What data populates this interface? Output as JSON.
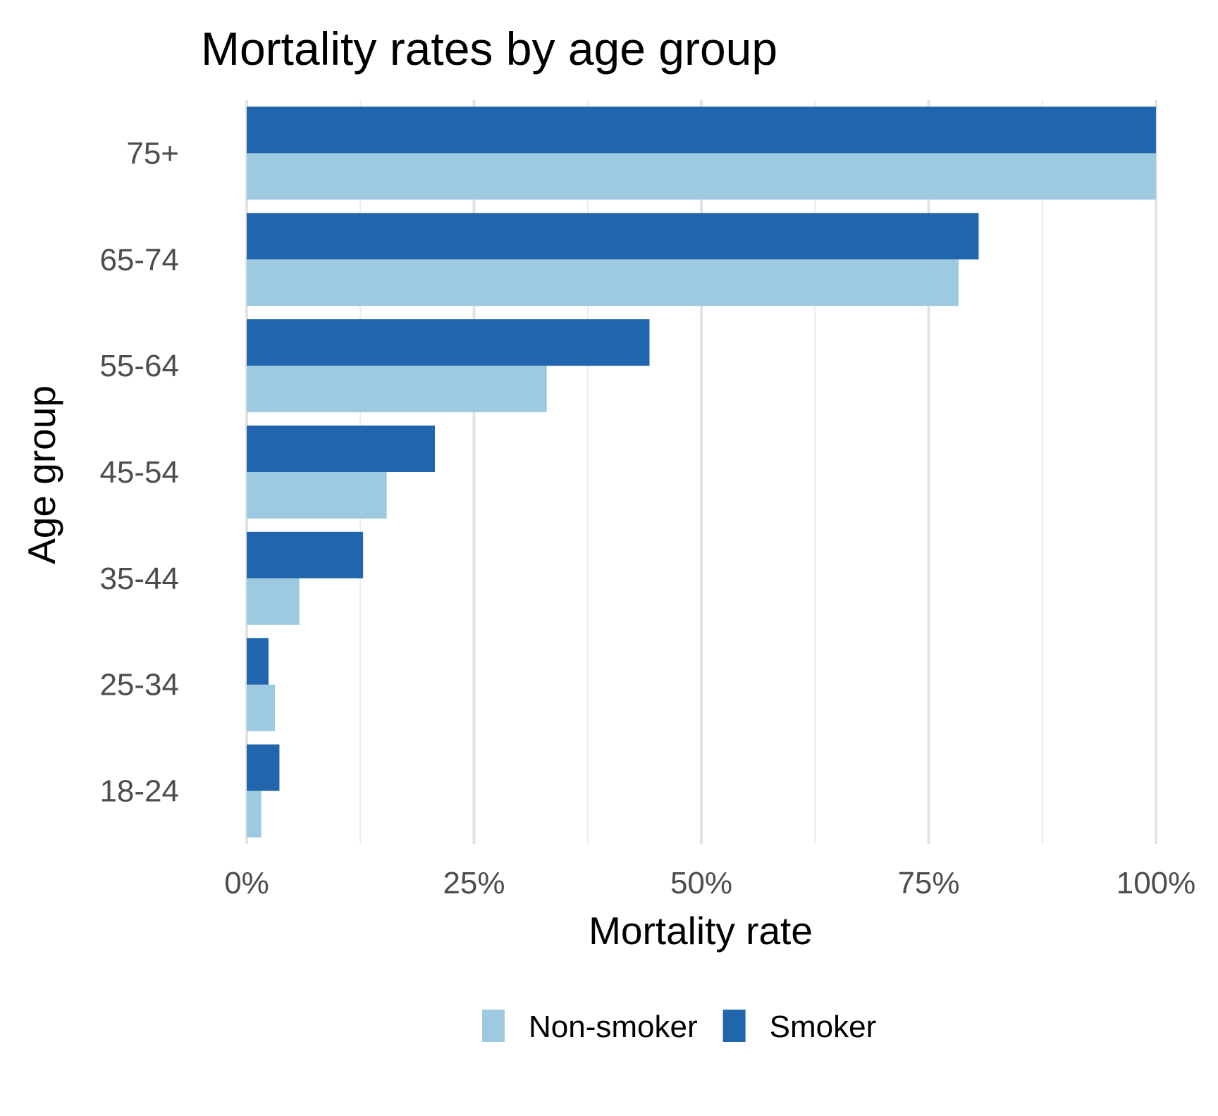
{
  "chart_data": {
    "type": "bar",
    "orientation": "horizontal",
    "title": "Mortality rates by age group",
    "xlabel": "Mortality rate",
    "ylabel": "Age group",
    "categories": [
      "18-24",
      "25-34",
      "35-44",
      "45-54",
      "55-64",
      "65-74",
      "75+"
    ],
    "series": [
      {
        "name": "Non-smoker",
        "color": "#9ecae1",
        "values": [
          1.6,
          3.1,
          5.8,
          15.4,
          33.0,
          78.3,
          100.0
        ]
      },
      {
        "name": "Smoker",
        "color": "#2166ac",
        "values": [
          3.6,
          2.4,
          12.8,
          20.7,
          44.3,
          80.5,
          100.0
        ]
      }
    ],
    "xlim": [
      0,
      100
    ],
    "x_ticks": [
      0,
      25,
      50,
      75,
      100
    ],
    "x_tick_labels": [
      "0%",
      "25%",
      "50%",
      "75%",
      "100%"
    ],
    "grid": "vertical",
    "legend": {
      "position": "bottom",
      "entries": [
        "Non-smoker",
        "Smoker"
      ]
    }
  }
}
